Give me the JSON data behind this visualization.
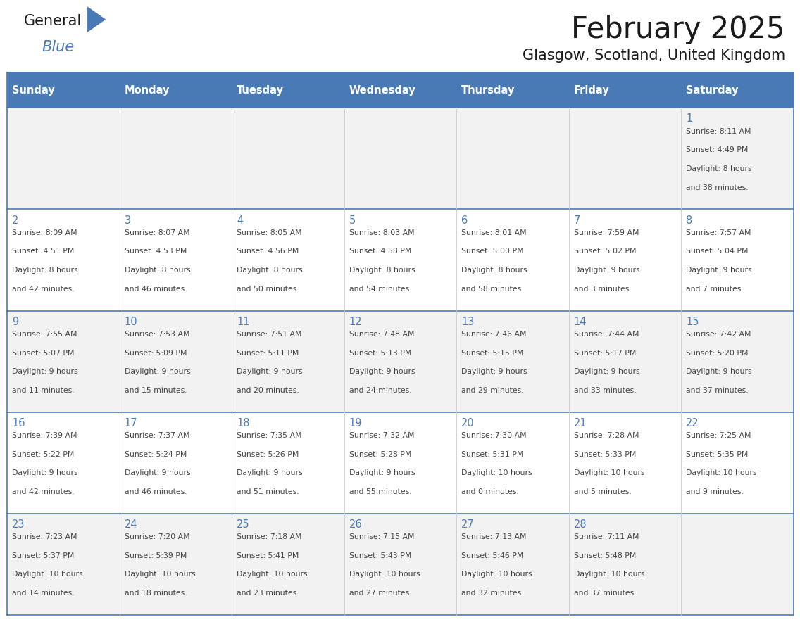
{
  "title": "February 2025",
  "subtitle": "Glasgow, Scotland, United Kingdom",
  "header_bg": "#4a7ab5",
  "header_text_color": "#FFFFFF",
  "cell_bg_light": "#f2f2f2",
  "cell_bg_white": "#FFFFFF",
  "cell_text_color": "#444444",
  "day_number_color": "#4a7ab5",
  "border_color": "#4a7ab5",
  "days_of_week": [
    "Sunday",
    "Monday",
    "Tuesday",
    "Wednesday",
    "Thursday",
    "Friday",
    "Saturday"
  ],
  "weeks": [
    [
      {
        "day": null,
        "info": ""
      },
      {
        "day": null,
        "info": ""
      },
      {
        "day": null,
        "info": ""
      },
      {
        "day": null,
        "info": ""
      },
      {
        "day": null,
        "info": ""
      },
      {
        "day": null,
        "info": ""
      },
      {
        "day": 1,
        "info": "Sunrise: 8:11 AM\nSunset: 4:49 PM\nDaylight: 8 hours\nand 38 minutes."
      }
    ],
    [
      {
        "day": 2,
        "info": "Sunrise: 8:09 AM\nSunset: 4:51 PM\nDaylight: 8 hours\nand 42 minutes."
      },
      {
        "day": 3,
        "info": "Sunrise: 8:07 AM\nSunset: 4:53 PM\nDaylight: 8 hours\nand 46 minutes."
      },
      {
        "day": 4,
        "info": "Sunrise: 8:05 AM\nSunset: 4:56 PM\nDaylight: 8 hours\nand 50 minutes."
      },
      {
        "day": 5,
        "info": "Sunrise: 8:03 AM\nSunset: 4:58 PM\nDaylight: 8 hours\nand 54 minutes."
      },
      {
        "day": 6,
        "info": "Sunrise: 8:01 AM\nSunset: 5:00 PM\nDaylight: 8 hours\nand 58 minutes."
      },
      {
        "day": 7,
        "info": "Sunrise: 7:59 AM\nSunset: 5:02 PM\nDaylight: 9 hours\nand 3 minutes."
      },
      {
        "day": 8,
        "info": "Sunrise: 7:57 AM\nSunset: 5:04 PM\nDaylight: 9 hours\nand 7 minutes."
      }
    ],
    [
      {
        "day": 9,
        "info": "Sunrise: 7:55 AM\nSunset: 5:07 PM\nDaylight: 9 hours\nand 11 minutes."
      },
      {
        "day": 10,
        "info": "Sunrise: 7:53 AM\nSunset: 5:09 PM\nDaylight: 9 hours\nand 15 minutes."
      },
      {
        "day": 11,
        "info": "Sunrise: 7:51 AM\nSunset: 5:11 PM\nDaylight: 9 hours\nand 20 minutes."
      },
      {
        "day": 12,
        "info": "Sunrise: 7:48 AM\nSunset: 5:13 PM\nDaylight: 9 hours\nand 24 minutes."
      },
      {
        "day": 13,
        "info": "Sunrise: 7:46 AM\nSunset: 5:15 PM\nDaylight: 9 hours\nand 29 minutes."
      },
      {
        "day": 14,
        "info": "Sunrise: 7:44 AM\nSunset: 5:17 PM\nDaylight: 9 hours\nand 33 minutes."
      },
      {
        "day": 15,
        "info": "Sunrise: 7:42 AM\nSunset: 5:20 PM\nDaylight: 9 hours\nand 37 minutes."
      }
    ],
    [
      {
        "day": 16,
        "info": "Sunrise: 7:39 AM\nSunset: 5:22 PM\nDaylight: 9 hours\nand 42 minutes."
      },
      {
        "day": 17,
        "info": "Sunrise: 7:37 AM\nSunset: 5:24 PM\nDaylight: 9 hours\nand 46 minutes."
      },
      {
        "day": 18,
        "info": "Sunrise: 7:35 AM\nSunset: 5:26 PM\nDaylight: 9 hours\nand 51 minutes."
      },
      {
        "day": 19,
        "info": "Sunrise: 7:32 AM\nSunset: 5:28 PM\nDaylight: 9 hours\nand 55 minutes."
      },
      {
        "day": 20,
        "info": "Sunrise: 7:30 AM\nSunset: 5:31 PM\nDaylight: 10 hours\nand 0 minutes."
      },
      {
        "day": 21,
        "info": "Sunrise: 7:28 AM\nSunset: 5:33 PM\nDaylight: 10 hours\nand 5 minutes."
      },
      {
        "day": 22,
        "info": "Sunrise: 7:25 AM\nSunset: 5:35 PM\nDaylight: 10 hours\nand 9 minutes."
      }
    ],
    [
      {
        "day": 23,
        "info": "Sunrise: 7:23 AM\nSunset: 5:37 PM\nDaylight: 10 hours\nand 14 minutes."
      },
      {
        "day": 24,
        "info": "Sunrise: 7:20 AM\nSunset: 5:39 PM\nDaylight: 10 hours\nand 18 minutes."
      },
      {
        "day": 25,
        "info": "Sunrise: 7:18 AM\nSunset: 5:41 PM\nDaylight: 10 hours\nand 23 minutes."
      },
      {
        "day": 26,
        "info": "Sunrise: 7:15 AM\nSunset: 5:43 PM\nDaylight: 10 hours\nand 27 minutes."
      },
      {
        "day": 27,
        "info": "Sunrise: 7:13 AM\nSunset: 5:46 PM\nDaylight: 10 hours\nand 32 minutes."
      },
      {
        "day": 28,
        "info": "Sunrise: 7:11 AM\nSunset: 5:48 PM\nDaylight: 10 hours\nand 37 minutes."
      },
      {
        "day": null,
        "info": ""
      }
    ]
  ],
  "logo_general_color": "#1a1a1a",
  "logo_blue_color": "#4a7ab5",
  "logo_triangle_color": "#4a7ab5"
}
